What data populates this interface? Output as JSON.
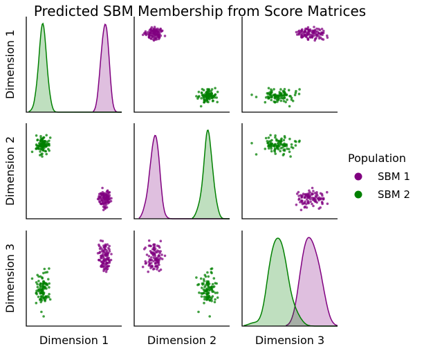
{
  "chart_data": {
    "type": "scatter",
    "kind": "pairplot",
    "title": "Predicted SBM Membership from Score Matrices",
    "dimensions": [
      "Dimension 1",
      "Dimension 2",
      "Dimension 3"
    ],
    "legend": {
      "title": "Population",
      "placement": "right",
      "entries": [
        {
          "label": "SBM 1",
          "color": "#800080"
        },
        {
          "label": "SBM 2",
          "color": "#008000"
        }
      ]
    },
    "diagonal": "kde",
    "ticks_visible": false,
    "grid": false,
    "series": [
      {
        "name": "SBM 1",
        "color": "#800080",
        "n_points": 100,
        "mean": [
          0.82,
          0.21,
          0.72
        ],
        "sd": [
          0.035,
          0.045,
          0.08
        ]
      },
      {
        "name": "SBM 2",
        "color": "#008000",
        "n_points": 100,
        "mean": [
          0.18,
          0.77,
          0.38
        ],
        "sd": [
          0.035,
          0.045,
          0.08
        ]
      }
    ]
  }
}
